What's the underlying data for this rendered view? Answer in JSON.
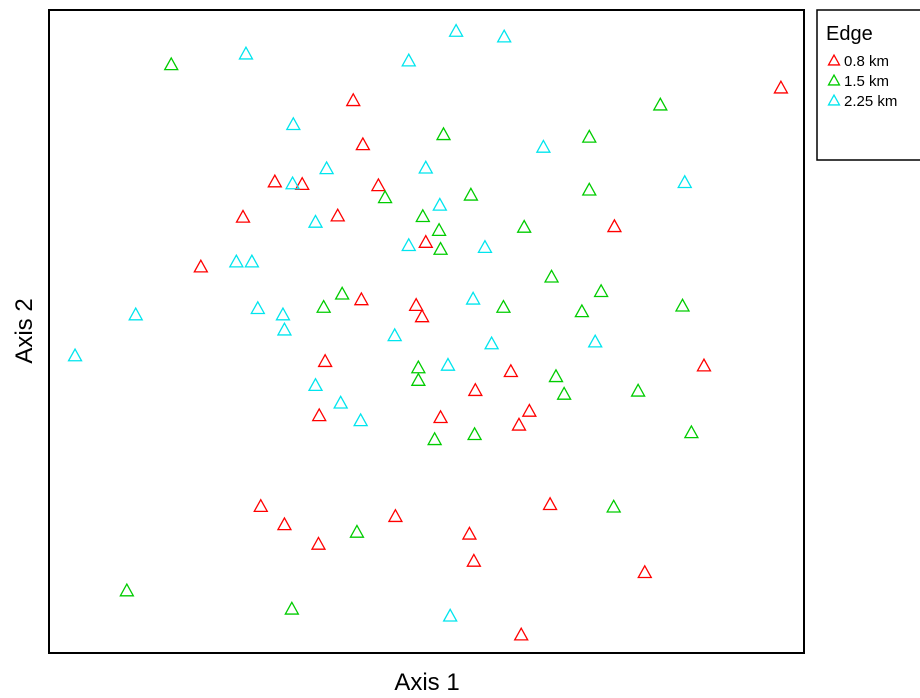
{
  "chart_data": {
    "type": "scatter",
    "title": "",
    "xlabel": "Axis 1",
    "ylabel": "Axis 2",
    "xlim": [
      0,
      100
    ],
    "ylim": [
      0,
      100
    ],
    "grid": false,
    "marker": "open-triangle",
    "legend": {
      "title": "Edge",
      "placement": "right-top-outside",
      "entries": [
        "0.8 km",
        "1.5 km",
        "2.25 km"
      ]
    },
    "series": [
      {
        "name": "0.8 km",
        "color": "#ff0000",
        "points": [
          {
            "x": 97.9,
            "y": 88.6
          },
          {
            "x": 40.1,
            "y": 86.6
          },
          {
            "x": 41.4,
            "y": 79.6
          },
          {
            "x": 29.5,
            "y": 73.7
          },
          {
            "x": 38.0,
            "y": 68.3
          },
          {
            "x": 25.2,
            "y": 68.1
          },
          {
            "x": 33.2,
            "y": 73.3
          },
          {
            "x": 43.5,
            "y": 73.1
          },
          {
            "x": 49.9,
            "y": 64.1
          },
          {
            "x": 75.4,
            "y": 66.6
          },
          {
            "x": 19.5,
            "y": 60.2
          },
          {
            "x": 41.2,
            "y": 55.0
          },
          {
            "x": 48.6,
            "y": 54.1
          },
          {
            "x": 49.4,
            "y": 52.3
          },
          {
            "x": 36.3,
            "y": 45.2
          },
          {
            "x": 87.5,
            "y": 44.5
          },
          {
            "x": 61.4,
            "y": 43.6
          },
          {
            "x": 56.6,
            "y": 40.6
          },
          {
            "x": 63.9,
            "y": 37.3
          },
          {
            "x": 35.5,
            "y": 36.6
          },
          {
            "x": 51.9,
            "y": 36.3
          },
          {
            "x": 62.5,
            "y": 35.1
          },
          {
            "x": 27.6,
            "y": 22.2
          },
          {
            "x": 66.7,
            "y": 22.5
          },
          {
            "x": 30.8,
            "y": 19.3
          },
          {
            "x": 45.8,
            "y": 20.6
          },
          {
            "x": 35.4,
            "y": 16.2
          },
          {
            "x": 55.8,
            "y": 17.8
          },
          {
            "x": 56.4,
            "y": 13.5
          },
          {
            "x": 79.5,
            "y": 11.7
          },
          {
            "x": 62.8,
            "y": 1.8
          }
        ]
      },
      {
        "name": "1.5 km",
        "color": "#00cc00",
        "points": [
          {
            "x": 15.5,
            "y": 92.3
          },
          {
            "x": 81.6,
            "y": 85.9
          },
          {
            "x": 52.3,
            "y": 81.2
          },
          {
            "x": 72.0,
            "y": 80.8
          },
          {
            "x": 72.0,
            "y": 72.4
          },
          {
            "x": 44.4,
            "y": 71.2
          },
          {
            "x": 56.0,
            "y": 71.6
          },
          {
            "x": 49.5,
            "y": 68.2
          },
          {
            "x": 51.7,
            "y": 66.0
          },
          {
            "x": 63.2,
            "y": 66.5
          },
          {
            "x": 51.9,
            "y": 63.0
          },
          {
            "x": 66.9,
            "y": 58.6
          },
          {
            "x": 38.6,
            "y": 55.9
          },
          {
            "x": 73.6,
            "y": 56.3
          },
          {
            "x": 36.1,
            "y": 53.8
          },
          {
            "x": 60.4,
            "y": 53.8
          },
          {
            "x": 84.6,
            "y": 54.0
          },
          {
            "x": 71.0,
            "y": 53.1
          },
          {
            "x": 48.9,
            "y": 44.2
          },
          {
            "x": 67.5,
            "y": 42.8
          },
          {
            "x": 48.9,
            "y": 42.2
          },
          {
            "x": 68.6,
            "y": 40.0
          },
          {
            "x": 78.6,
            "y": 40.5
          },
          {
            "x": 56.5,
            "y": 33.6
          },
          {
            "x": 51.1,
            "y": 32.8
          },
          {
            "x": 85.8,
            "y": 33.9
          },
          {
            "x": 75.3,
            "y": 22.1
          },
          {
            "x": 40.6,
            "y": 18.1
          },
          {
            "x": 9.5,
            "y": 8.8
          },
          {
            "x": 31.8,
            "y": 5.9
          }
        ]
      },
      {
        "name": "2.25 km",
        "color": "#00e5ee",
        "points": [
          {
            "x": 54.0,
            "y": 97.6
          },
          {
            "x": 60.5,
            "y": 96.7
          },
          {
            "x": 25.6,
            "y": 94.0
          },
          {
            "x": 47.6,
            "y": 92.9
          },
          {
            "x": 32.0,
            "y": 82.8
          },
          {
            "x": 65.8,
            "y": 79.2
          },
          {
            "x": 36.5,
            "y": 75.8
          },
          {
            "x": 49.9,
            "y": 75.9
          },
          {
            "x": 31.9,
            "y": 73.4
          },
          {
            "x": 84.9,
            "y": 73.6
          },
          {
            "x": 51.8,
            "y": 70.0
          },
          {
            "x": 35.0,
            "y": 67.3
          },
          {
            "x": 47.6,
            "y": 63.6
          },
          {
            "x": 57.9,
            "y": 63.3
          },
          {
            "x": 24.3,
            "y": 61.0
          },
          {
            "x": 26.4,
            "y": 61.0
          },
          {
            "x": 56.3,
            "y": 55.1
          },
          {
            "x": 10.7,
            "y": 52.6
          },
          {
            "x": 27.2,
            "y": 53.6
          },
          {
            "x": 30.6,
            "y": 52.6
          },
          {
            "x": 30.8,
            "y": 50.2
          },
          {
            "x": 45.7,
            "y": 49.3
          },
          {
            "x": 72.8,
            "y": 48.3
          },
          {
            "x": 58.8,
            "y": 48.0
          },
          {
            "x": 2.5,
            "y": 46.1
          },
          {
            "x": 52.9,
            "y": 44.6
          },
          {
            "x": 35.0,
            "y": 41.4
          },
          {
            "x": 38.4,
            "y": 38.6
          },
          {
            "x": 41.1,
            "y": 35.8
          },
          {
            "x": 53.2,
            "y": 4.8
          }
        ]
      }
    ]
  }
}
